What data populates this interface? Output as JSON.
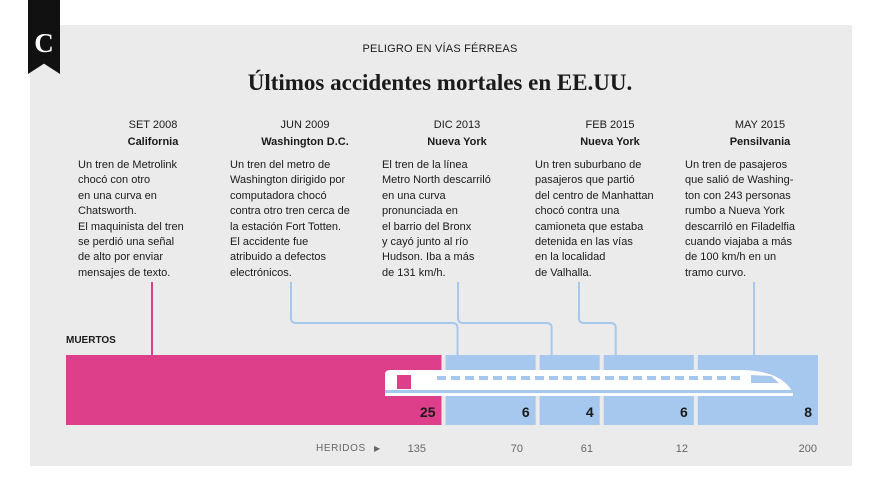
{
  "header": {
    "logo_letter": "C",
    "kicker": "PELIGRO EN VÍAS FÉRREAS",
    "title": "Últimos accidentes mortales en EE.UU."
  },
  "colors": {
    "highlight": "#de3f8a",
    "base": "#a6c8ee",
    "panel": "#ebebeb",
    "train": "#ffffff"
  },
  "accidents": [
    {
      "date": "SET 2008",
      "place": "California",
      "desc": "Un tren de Metrolink\nchocó con otro\nen una curva en\nChatsworth.\nEl maquinista del tren\nse perdió una señal\nde alto por enviar\nmensajes de texto."
    },
    {
      "date": "JUN 2009",
      "place": "Washington D.C.",
      "desc": "Un tren del metro de\nWashington dirigido por\ncomputadora chocó\ncontra otro tren cerca de\nla estación Fort Totten.\nEl accidente fue\natribuido a defectos\nelectrónicos."
    },
    {
      "date": "DIC 2013",
      "place": "Nueva York",
      "desc": "El tren de la línea\nMetro North descarriló\nen una curva\npronunciada en\nel barrio del Bronx\ny cayó junto al río\nHudson. Iba a más\nde 131 km/h."
    },
    {
      "date": "FEB 2015",
      "place": "Nueva York",
      "desc": "Un tren suburbano de\npasajeros que partió\ndel centro de Manhattan\nchocó contra una\ncamioneta que estaba\ndetenida en las vías\nen la localidad\nde Valhalla."
    },
    {
      "date": "MAY 2015",
      "place": "Pensilvania",
      "desc": "Un tren de pasajeros\nque salió de Washing-\nton con 243 personas\nrumbo a Nueva York\ndescarriló en Filadelfia\ncuando viajaba a más\nde 100 km/h en un\ntramo curvo."
    }
  ],
  "chart_data": {
    "type": "bar",
    "orientation": "horizontal-stacked",
    "measure_label": "MUERTOS",
    "secondary_label": "HERIDOS",
    "categories": [
      "SET 2008",
      "JUN 2009",
      "DIC 2013",
      "FEB 2015",
      "MAY 2015"
    ],
    "values": [
      25,
      6,
      4,
      6,
      8
    ],
    "heridos": [
      135,
      70,
      61,
      12,
      200
    ],
    "value_labels": [
      "25",
      "6",
      "4",
      "6",
      "8"
    ],
    "heridos_labels": [
      "135",
      "70",
      "61",
      "12",
      "200"
    ]
  }
}
